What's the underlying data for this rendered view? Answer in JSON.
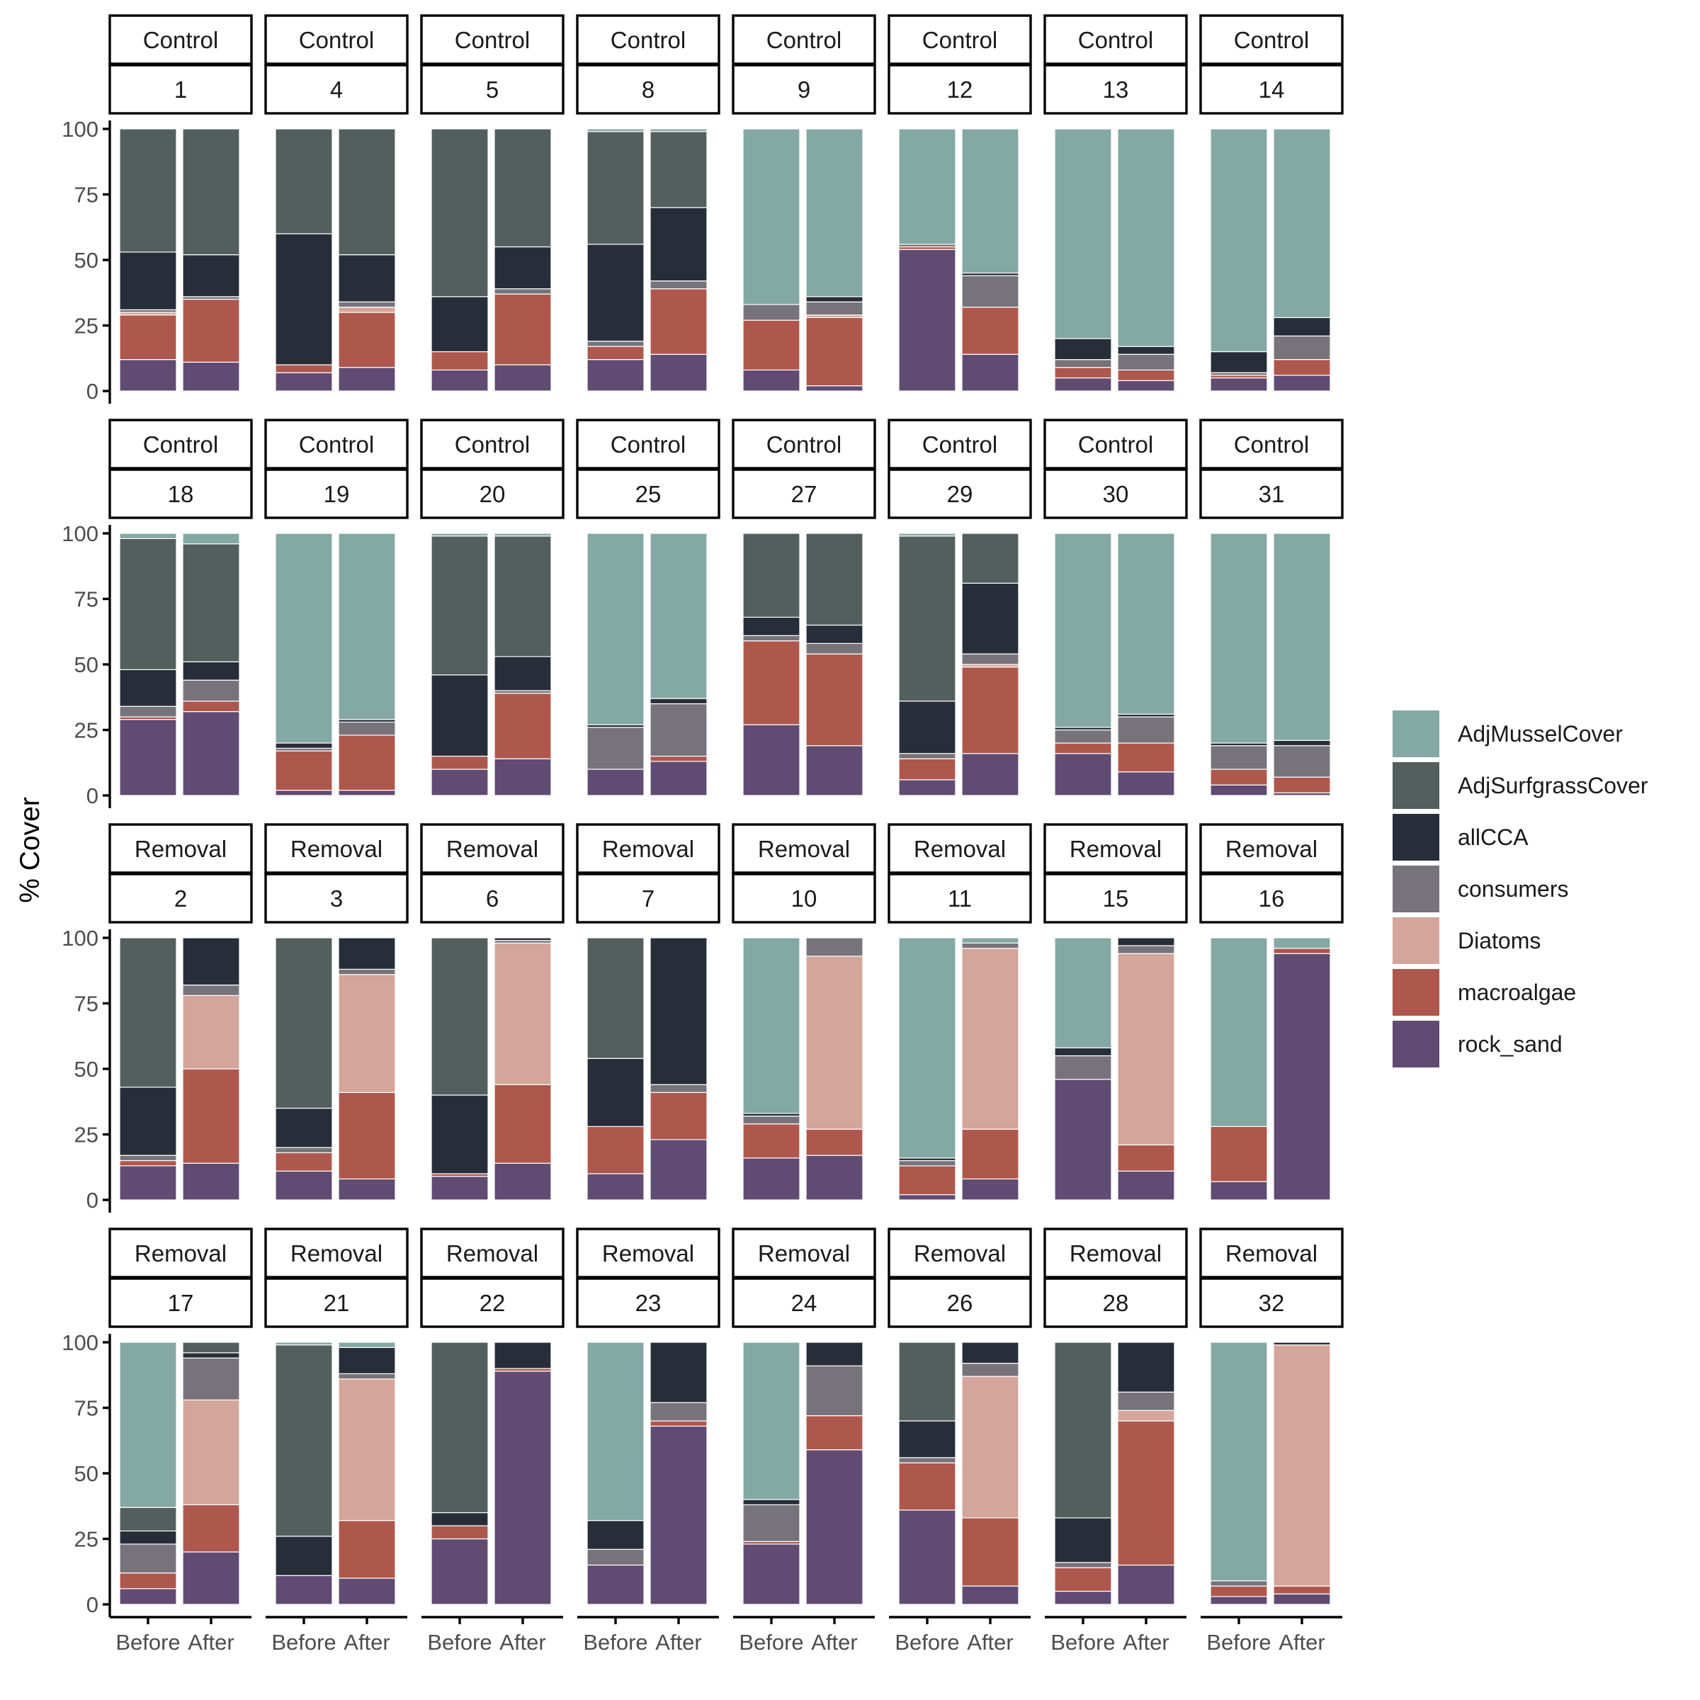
{
  "chart_data": {
    "type": "bar",
    "stacked": true,
    "ylabel": "% Cover",
    "xlabel": "",
    "ylim": [
      0,
      100
    ],
    "y_ticks": [
      0,
      25,
      50,
      75,
      100
    ],
    "categories": [
      "Before",
      "After"
    ],
    "legend_position": "right",
    "grid": false,
    "series": [
      {
        "name": "AdjMusselCover",
        "color": "#84a8a4"
      },
      {
        "name": "AdjSurfgrassCover",
        "color": "#525f5c"
      },
      {
        "name": "allCCA",
        "color": "#272e39"
      },
      {
        "name": "consumers",
        "color": "#76737b"
      },
      {
        "name": "Diatoms",
        "color": "#d4a59b"
      },
      {
        "name": "macroalgae",
        "color": "#ae574d"
      },
      {
        "name": "rock_sand",
        "color": "#604b72"
      }
    ],
    "series_order_bottom_to_top": [
      "rock_sand",
      "macroalgae",
      "Diatoms",
      "consumers",
      "allCCA",
      "AdjSurfgrassCover",
      "AdjMusselCover"
    ],
    "panels": [
      {
        "treatment": "Control",
        "plot": "1",
        "before": {
          "rock_sand": 12,
          "macroalgae": 17,
          "Diatoms": 1,
          "consumers": 1,
          "allCCA": 22,
          "AdjSurfgrassCover": 47,
          "AdjMusselCover": 0
        },
        "after": {
          "rock_sand": 11,
          "macroalgae": 24,
          "Diatoms": 0,
          "consumers": 1,
          "allCCA": 16,
          "AdjSurfgrassCover": 48,
          "AdjMusselCover": 0
        }
      },
      {
        "treatment": "Control",
        "plot": "4",
        "before": {
          "rock_sand": 7,
          "macroalgae": 3,
          "Diatoms": 0,
          "consumers": 0,
          "allCCA": 50,
          "AdjSurfgrassCover": 40,
          "AdjMusselCover": 0
        },
        "after": {
          "rock_sand": 9,
          "macroalgae": 21,
          "Diatoms": 2,
          "consumers": 2,
          "allCCA": 18,
          "AdjSurfgrassCover": 48,
          "AdjMusselCover": 0
        }
      },
      {
        "treatment": "Control",
        "plot": "5",
        "before": {
          "rock_sand": 8,
          "macroalgae": 7,
          "Diatoms": 0,
          "consumers": 0,
          "allCCA": 21,
          "AdjSurfgrassCover": 64,
          "AdjMusselCover": 0
        },
        "after": {
          "rock_sand": 10,
          "macroalgae": 27,
          "Diatoms": 0,
          "consumers": 2,
          "allCCA": 16,
          "AdjSurfgrassCover": 45,
          "AdjMusselCover": 0
        }
      },
      {
        "treatment": "Control",
        "plot": "8",
        "before": {
          "rock_sand": 12,
          "macroalgae": 5,
          "Diatoms": 0,
          "consumers": 2,
          "allCCA": 37,
          "AdjSurfgrassCover": 43,
          "AdjMusselCover": 1
        },
        "after": {
          "rock_sand": 14,
          "macroalgae": 25,
          "Diatoms": 0,
          "consumers": 3,
          "allCCA": 28,
          "AdjSurfgrassCover": 29,
          "AdjMusselCover": 1
        }
      },
      {
        "treatment": "Control",
        "plot": "9",
        "before": {
          "rock_sand": 8,
          "macroalgae": 19,
          "Diatoms": 0,
          "consumers": 6,
          "allCCA": 0,
          "AdjSurfgrassCover": 0,
          "AdjMusselCover": 67
        },
        "after": {
          "rock_sand": 2,
          "macroalgae": 26,
          "Diatoms": 1,
          "consumers": 5,
          "allCCA": 2,
          "AdjSurfgrassCover": 0,
          "AdjMusselCover": 64
        }
      },
      {
        "treatment": "Control",
        "plot": "12",
        "before": {
          "rock_sand": 54,
          "macroalgae": 1,
          "Diatoms": 0,
          "consumers": 1,
          "allCCA": 0,
          "AdjSurfgrassCover": 0,
          "AdjMusselCover": 44
        },
        "after": {
          "rock_sand": 14,
          "macroalgae": 18,
          "Diatoms": 0,
          "consumers": 12,
          "allCCA": 1,
          "AdjSurfgrassCover": 0,
          "AdjMusselCover": 55
        }
      },
      {
        "treatment": "Control",
        "plot": "13",
        "before": {
          "rock_sand": 5,
          "macroalgae": 4,
          "Diatoms": 0,
          "consumers": 3,
          "allCCA": 8,
          "AdjSurfgrassCover": 0,
          "AdjMusselCover": 80
        },
        "after": {
          "rock_sand": 4,
          "macroalgae": 4,
          "Diatoms": 0,
          "consumers": 6,
          "allCCA": 3,
          "AdjSurfgrassCover": 0,
          "AdjMusselCover": 83
        }
      },
      {
        "treatment": "Control",
        "plot": "14",
        "before": {
          "rock_sand": 5,
          "macroalgae": 1,
          "Diatoms": 0,
          "consumers": 1,
          "allCCA": 8,
          "AdjSurfgrassCover": 0,
          "AdjMusselCover": 85
        },
        "after": {
          "rock_sand": 6,
          "macroalgae": 6,
          "Diatoms": 0,
          "consumers": 9,
          "allCCA": 7,
          "AdjSurfgrassCover": 0,
          "AdjMusselCover": 72
        }
      },
      {
        "treatment": "Control",
        "plot": "18",
        "before": {
          "rock_sand": 29,
          "macroalgae": 1,
          "Diatoms": 0,
          "consumers": 4,
          "allCCA": 14,
          "AdjSurfgrassCover": 50,
          "AdjMusselCover": 2
        },
        "after": {
          "rock_sand": 32,
          "macroalgae": 4,
          "Diatoms": 0,
          "consumers": 8,
          "allCCA": 7,
          "AdjSurfgrassCover": 45,
          "AdjMusselCover": 4
        }
      },
      {
        "treatment": "Control",
        "plot": "19",
        "before": {
          "rock_sand": 2,
          "macroalgae": 15,
          "Diatoms": 0,
          "consumers": 1,
          "allCCA": 2,
          "AdjSurfgrassCover": 0,
          "AdjMusselCover": 80
        },
        "after": {
          "rock_sand": 2,
          "macroalgae": 21,
          "Diatoms": 0,
          "consumers": 5,
          "allCCA": 1,
          "AdjSurfgrassCover": 0,
          "AdjMusselCover": 71
        }
      },
      {
        "treatment": "Control",
        "plot": "20",
        "before": {
          "rock_sand": 10,
          "macroalgae": 5,
          "Diatoms": 0,
          "consumers": 0,
          "allCCA": 31,
          "AdjSurfgrassCover": 53,
          "AdjMusselCover": 1
        },
        "after": {
          "rock_sand": 14,
          "macroalgae": 25,
          "Diatoms": 0,
          "consumers": 1,
          "allCCA": 13,
          "AdjSurfgrassCover": 46,
          "AdjMusselCover": 1
        }
      },
      {
        "treatment": "Control",
        "plot": "25",
        "before": {
          "rock_sand": 10,
          "macroalgae": 0,
          "Diatoms": 0,
          "consumers": 16,
          "allCCA": 1,
          "AdjSurfgrassCover": 0,
          "AdjMusselCover": 73
        },
        "after": {
          "rock_sand": 13,
          "macroalgae": 2,
          "Diatoms": 0,
          "consumers": 20,
          "allCCA": 2,
          "AdjSurfgrassCover": 0,
          "AdjMusselCover": 63
        }
      },
      {
        "treatment": "Control",
        "plot": "27",
        "before": {
          "rock_sand": 27,
          "macroalgae": 32,
          "Diatoms": 0,
          "consumers": 2,
          "allCCA": 7,
          "AdjSurfgrassCover": 32,
          "AdjMusselCover": 0
        },
        "after": {
          "rock_sand": 19,
          "macroalgae": 35,
          "Diatoms": 0,
          "consumers": 4,
          "allCCA": 7,
          "AdjSurfgrassCover": 35,
          "AdjMusselCover": 0
        }
      },
      {
        "treatment": "Control",
        "plot": "29",
        "before": {
          "rock_sand": 6,
          "macroalgae": 8,
          "Diatoms": 0,
          "consumers": 2,
          "allCCA": 20,
          "AdjSurfgrassCover": 63,
          "AdjMusselCover": 1
        },
        "after": {
          "rock_sand": 16,
          "macroalgae": 33,
          "Diatoms": 1,
          "consumers": 4,
          "allCCA": 27,
          "AdjSurfgrassCover": 19,
          "AdjMusselCover": 0
        }
      },
      {
        "treatment": "Control",
        "plot": "30",
        "before": {
          "rock_sand": 16,
          "macroalgae": 4,
          "Diatoms": 0,
          "consumers": 5,
          "allCCA": 1,
          "AdjSurfgrassCover": 0,
          "AdjMusselCover": 74
        },
        "after": {
          "rock_sand": 9,
          "macroalgae": 11,
          "Diatoms": 0,
          "consumers": 10,
          "allCCA": 1,
          "AdjSurfgrassCover": 0,
          "AdjMusselCover": 69
        }
      },
      {
        "treatment": "Control",
        "plot": "31",
        "before": {
          "rock_sand": 4,
          "macroalgae": 6,
          "Diatoms": 0,
          "consumers": 9,
          "allCCA": 1,
          "AdjSurfgrassCover": 0,
          "AdjMusselCover": 80
        },
        "after": {
          "rock_sand": 1,
          "macroalgae": 6,
          "Diatoms": 0,
          "consumers": 12,
          "allCCA": 2,
          "AdjSurfgrassCover": 0,
          "AdjMusselCover": 79
        }
      },
      {
        "treatment": "Removal",
        "plot": "2",
        "before": {
          "rock_sand": 13,
          "macroalgae": 2,
          "Diatoms": 0,
          "consumers": 2,
          "allCCA": 26,
          "AdjSurfgrassCover": 57,
          "AdjMusselCover": 0
        },
        "after": {
          "rock_sand": 14,
          "macroalgae": 36,
          "Diatoms": 28,
          "consumers": 4,
          "allCCA": 18,
          "AdjSurfgrassCover": 0,
          "AdjMusselCover": 0
        }
      },
      {
        "treatment": "Removal",
        "plot": "3",
        "before": {
          "rock_sand": 11,
          "macroalgae": 7,
          "Diatoms": 0,
          "consumers": 2,
          "allCCA": 15,
          "AdjSurfgrassCover": 65,
          "AdjMusselCover": 0
        },
        "after": {
          "rock_sand": 8,
          "macroalgae": 33,
          "Diatoms": 45,
          "consumers": 2,
          "allCCA": 12,
          "AdjSurfgrassCover": 0,
          "AdjMusselCover": 0
        }
      },
      {
        "treatment": "Removal",
        "plot": "6",
        "before": {
          "rock_sand": 9,
          "macroalgae": 1,
          "Diatoms": 0,
          "consumers": 0,
          "allCCA": 30,
          "AdjSurfgrassCover": 60,
          "AdjMusselCover": 0
        },
        "after": {
          "rock_sand": 14,
          "macroalgae": 30,
          "Diatoms": 54,
          "consumers": 1,
          "allCCA": 1,
          "AdjSurfgrassCover": 0,
          "AdjMusselCover": 0
        }
      },
      {
        "treatment": "Removal",
        "plot": "7",
        "before": {
          "rock_sand": 10,
          "macroalgae": 18,
          "Diatoms": 0,
          "consumers": 0,
          "allCCA": 26,
          "AdjSurfgrassCover": 46,
          "AdjMusselCover": 0
        },
        "after": {
          "rock_sand": 23,
          "macroalgae": 18,
          "Diatoms": 0,
          "consumers": 3,
          "allCCA": 56,
          "AdjSurfgrassCover": 0,
          "AdjMusselCover": 0
        }
      },
      {
        "treatment": "Removal",
        "plot": "10",
        "before": {
          "rock_sand": 16,
          "macroalgae": 13,
          "Diatoms": 0,
          "consumers": 3,
          "allCCA": 1,
          "AdjSurfgrassCover": 0,
          "AdjMusselCover": 67
        },
        "after": {
          "rock_sand": 17,
          "macroalgae": 10,
          "Diatoms": 66,
          "consumers": 7,
          "allCCA": 0,
          "AdjSurfgrassCover": 0,
          "AdjMusselCover": 0
        }
      },
      {
        "treatment": "Removal",
        "plot": "11",
        "before": {
          "rock_sand": 2,
          "macroalgae": 11,
          "Diatoms": 0,
          "consumers": 2,
          "allCCA": 1,
          "AdjSurfgrassCover": 0,
          "AdjMusselCover": 84
        },
        "after": {
          "rock_sand": 8,
          "macroalgae": 19,
          "Diatoms": 69,
          "consumers": 2,
          "allCCA": 0,
          "AdjSurfgrassCover": 0,
          "AdjMusselCover": 2
        }
      },
      {
        "treatment": "Removal",
        "plot": "15",
        "before": {
          "rock_sand": 46,
          "macroalgae": 0,
          "Diatoms": 0,
          "consumers": 9,
          "allCCA": 3,
          "AdjSurfgrassCover": 0,
          "AdjMusselCover": 42
        },
        "after": {
          "rock_sand": 11,
          "macroalgae": 10,
          "Diatoms": 73,
          "consumers": 3,
          "allCCA": 3,
          "AdjSurfgrassCover": 0,
          "AdjMusselCover": 0
        }
      },
      {
        "treatment": "Removal",
        "plot": "16",
        "before": {
          "rock_sand": 7,
          "macroalgae": 21,
          "Diatoms": 0,
          "consumers": 0,
          "allCCA": 0,
          "AdjSurfgrassCover": 0,
          "AdjMusselCover": 72
        },
        "after": {
          "rock_sand": 94,
          "macroalgae": 2,
          "Diatoms": 0,
          "consumers": 0,
          "allCCA": 0,
          "AdjSurfgrassCover": 0,
          "AdjMusselCover": 4
        }
      },
      {
        "treatment": "Removal",
        "plot": "17",
        "before": {
          "rock_sand": 6,
          "macroalgae": 6,
          "Diatoms": 0,
          "consumers": 11,
          "allCCA": 5,
          "AdjSurfgrassCover": 9,
          "AdjMusselCover": 63
        },
        "after": {
          "rock_sand": 20,
          "macroalgae": 18,
          "Diatoms": 40,
          "consumers": 16,
          "allCCA": 2,
          "AdjSurfgrassCover": 4,
          "AdjMusselCover": 0
        }
      },
      {
        "treatment": "Removal",
        "plot": "21",
        "before": {
          "rock_sand": 11,
          "macroalgae": 0,
          "Diatoms": 0,
          "consumers": 0,
          "allCCA": 15,
          "AdjSurfgrassCover": 73,
          "AdjMusselCover": 1
        },
        "after": {
          "rock_sand": 10,
          "macroalgae": 22,
          "Diatoms": 54,
          "consumers": 2,
          "allCCA": 10,
          "AdjSurfgrassCover": 0,
          "AdjMusselCover": 2
        }
      },
      {
        "treatment": "Removal",
        "plot": "22",
        "before": {
          "rock_sand": 25,
          "macroalgae": 5,
          "Diatoms": 0,
          "consumers": 0,
          "allCCA": 5,
          "AdjSurfgrassCover": 65,
          "AdjMusselCover": 0
        },
        "after": {
          "rock_sand": 89,
          "macroalgae": 1,
          "Diatoms": 0,
          "consumers": 0,
          "allCCA": 10,
          "AdjSurfgrassCover": 0,
          "AdjMusselCover": 0
        }
      },
      {
        "treatment": "Removal",
        "plot": "23",
        "before": {
          "rock_sand": 15,
          "macroalgae": 0,
          "Diatoms": 0,
          "consumers": 6,
          "allCCA": 11,
          "AdjSurfgrassCover": 0,
          "AdjMusselCover": 68
        },
        "after": {
          "rock_sand": 68,
          "macroalgae": 2,
          "Diatoms": 0,
          "consumers": 7,
          "allCCA": 23,
          "AdjSurfgrassCover": 0,
          "AdjMusselCover": 0
        }
      },
      {
        "treatment": "Removal",
        "plot": "24",
        "before": {
          "rock_sand": 23,
          "macroalgae": 1,
          "Diatoms": 0,
          "consumers": 14,
          "allCCA": 2,
          "AdjSurfgrassCover": 0,
          "AdjMusselCover": 60
        },
        "after": {
          "rock_sand": 59,
          "macroalgae": 13,
          "Diatoms": 0,
          "consumers": 19,
          "allCCA": 9,
          "AdjSurfgrassCover": 0,
          "AdjMusselCover": 0
        }
      },
      {
        "treatment": "Removal",
        "plot": "26",
        "before": {
          "rock_sand": 36,
          "macroalgae": 18,
          "Diatoms": 0,
          "consumers": 2,
          "allCCA": 14,
          "AdjSurfgrassCover": 30,
          "AdjMusselCover": 0
        },
        "after": {
          "rock_sand": 7,
          "macroalgae": 26,
          "Diatoms": 54,
          "consumers": 5,
          "allCCA": 8,
          "AdjSurfgrassCover": 0,
          "AdjMusselCover": 0
        }
      },
      {
        "treatment": "Removal",
        "plot": "28",
        "before": {
          "rock_sand": 5,
          "macroalgae": 9,
          "Diatoms": 0,
          "consumers": 2,
          "allCCA": 17,
          "AdjSurfgrassCover": 67,
          "AdjMusselCover": 0
        },
        "after": {
          "rock_sand": 15,
          "macroalgae": 55,
          "Diatoms": 4,
          "consumers": 7,
          "allCCA": 19,
          "AdjSurfgrassCover": 0,
          "AdjMusselCover": 0
        }
      },
      {
        "treatment": "Removal",
        "plot": "32",
        "before": {
          "rock_sand": 3,
          "macroalgae": 4,
          "Diatoms": 0,
          "consumers": 2,
          "allCCA": 0,
          "AdjSurfgrassCover": 0,
          "AdjMusselCover": 91
        },
        "after": {
          "rock_sand": 4,
          "macroalgae": 3,
          "Diatoms": 92,
          "consumers": 0,
          "allCCA": 1,
          "AdjSurfgrassCover": 0,
          "AdjMusselCover": 0
        }
      }
    ]
  }
}
